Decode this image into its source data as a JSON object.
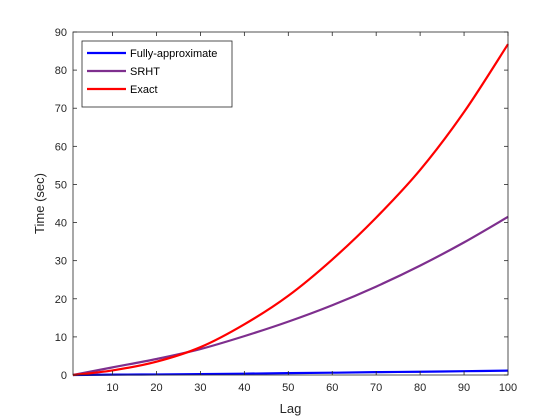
{
  "chart_data": {
    "type": "line",
    "xlabel": "Lag",
    "ylabel": "Time (sec)",
    "xlim": [
      1,
      100
    ],
    "ylim": [
      0,
      90
    ],
    "xticks": [
      10,
      20,
      30,
      40,
      50,
      60,
      70,
      80,
      90,
      100
    ],
    "yticks": [
      0,
      10,
      20,
      30,
      40,
      50,
      60,
      70,
      80,
      90
    ],
    "grid": false,
    "legend_position": "top-left",
    "series": [
      {
        "name": "Fully-approximate",
        "color": "#0000ff",
        "x": [
          1,
          10,
          20,
          30,
          40,
          50,
          60,
          70,
          80,
          90,
          100
        ],
        "y": [
          0.0,
          0.1,
          0.15,
          0.25,
          0.35,
          0.5,
          0.6,
          0.75,
          0.85,
          1.0,
          1.15
        ]
      },
      {
        "name": "SRHT",
        "color": "#7e2f8e",
        "x": [
          1,
          10,
          20,
          30,
          40,
          50,
          60,
          70,
          80,
          90,
          100
        ],
        "y": [
          0.0,
          2.0,
          4.2,
          6.8,
          10.2,
          14.0,
          18.3,
          23.2,
          28.7,
          34.8,
          41.5
        ]
      },
      {
        "name": "Exact",
        "color": "#ff0000",
        "x": [
          1,
          10,
          20,
          30,
          40,
          50,
          60,
          70,
          80,
          90,
          100
        ],
        "y": [
          0.0,
          1.2,
          3.5,
          7.3,
          13.3,
          20.8,
          30.3,
          41.3,
          53.8,
          69.0,
          86.8
        ]
      }
    ]
  }
}
